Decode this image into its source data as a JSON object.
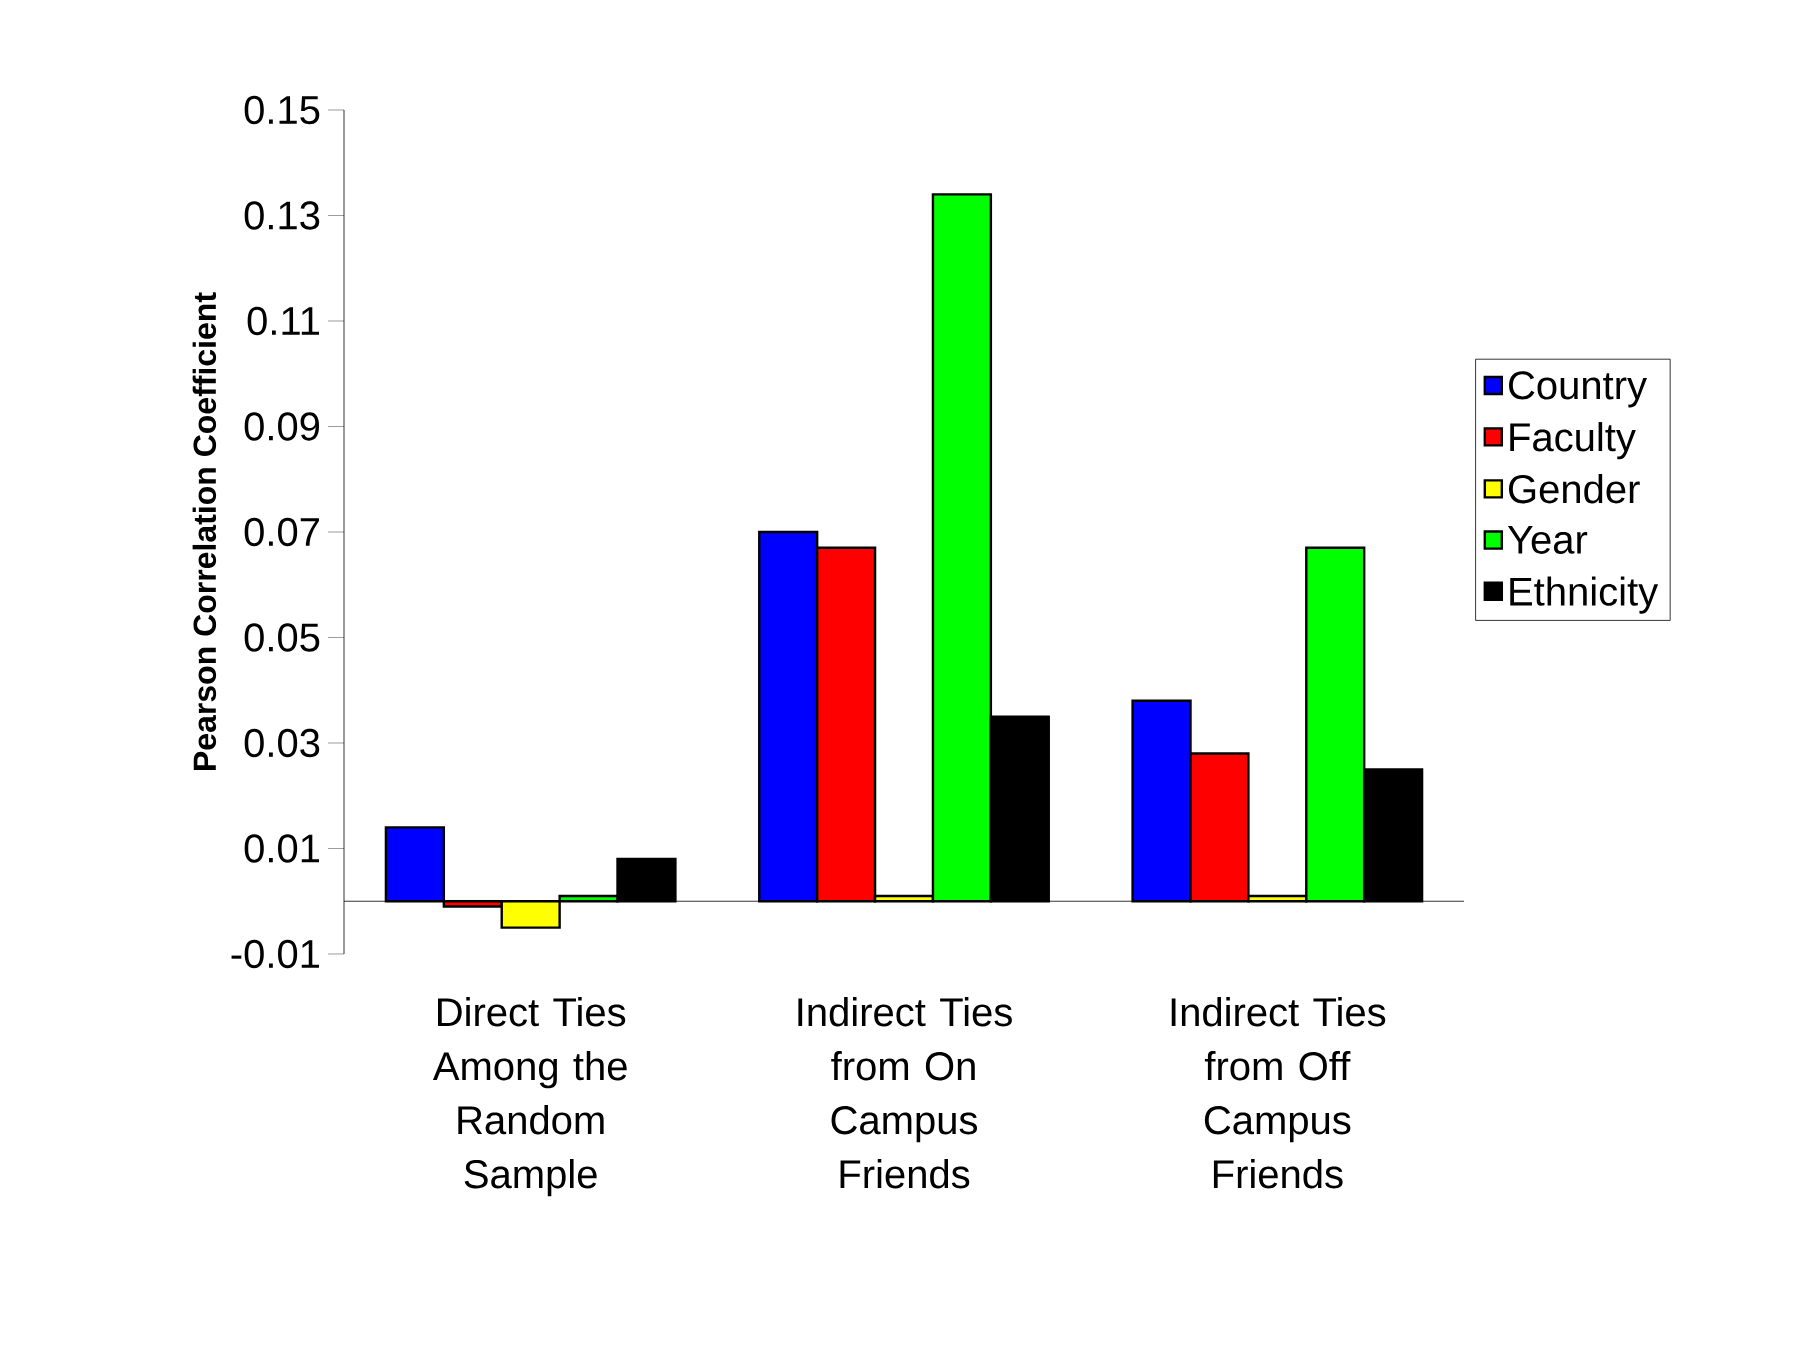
{
  "chart_data": {
    "type": "bar",
    "ylabel": "Pearson Correlation Coefficient",
    "categories": [
      "Direct Ties Among the Random Sample",
      "Indirect Ties from On Campus Friends",
      "Indirect Ties from Off Campus Friends"
    ],
    "series": [
      {
        "name": "Country",
        "color": "#0000ff",
        "values": [
          0.014,
          0.07,
          0.038
        ]
      },
      {
        "name": "Faculty",
        "color": "#ff0000",
        "values": [
          -0.001,
          0.067,
          0.028
        ]
      },
      {
        "name": "Gender",
        "color": "#ffff00",
        "values": [
          -0.005,
          0.001,
          0.001
        ]
      },
      {
        "name": "Year",
        "color": "#00ff00",
        "values": [
          0.001,
          0.134,
          0.067
        ]
      },
      {
        "name": "Ethnicity",
        "color": "#000000",
        "values": [
          0.008,
          0.035,
          0.025
        ]
      }
    ],
    "ylim": [
      -0.01,
      0.15
    ],
    "yticks": [
      -0.01,
      0.01,
      0.03,
      0.05,
      0.07,
      0.09,
      0.11,
      0.13,
      0.15
    ],
    "legend": "right"
  }
}
